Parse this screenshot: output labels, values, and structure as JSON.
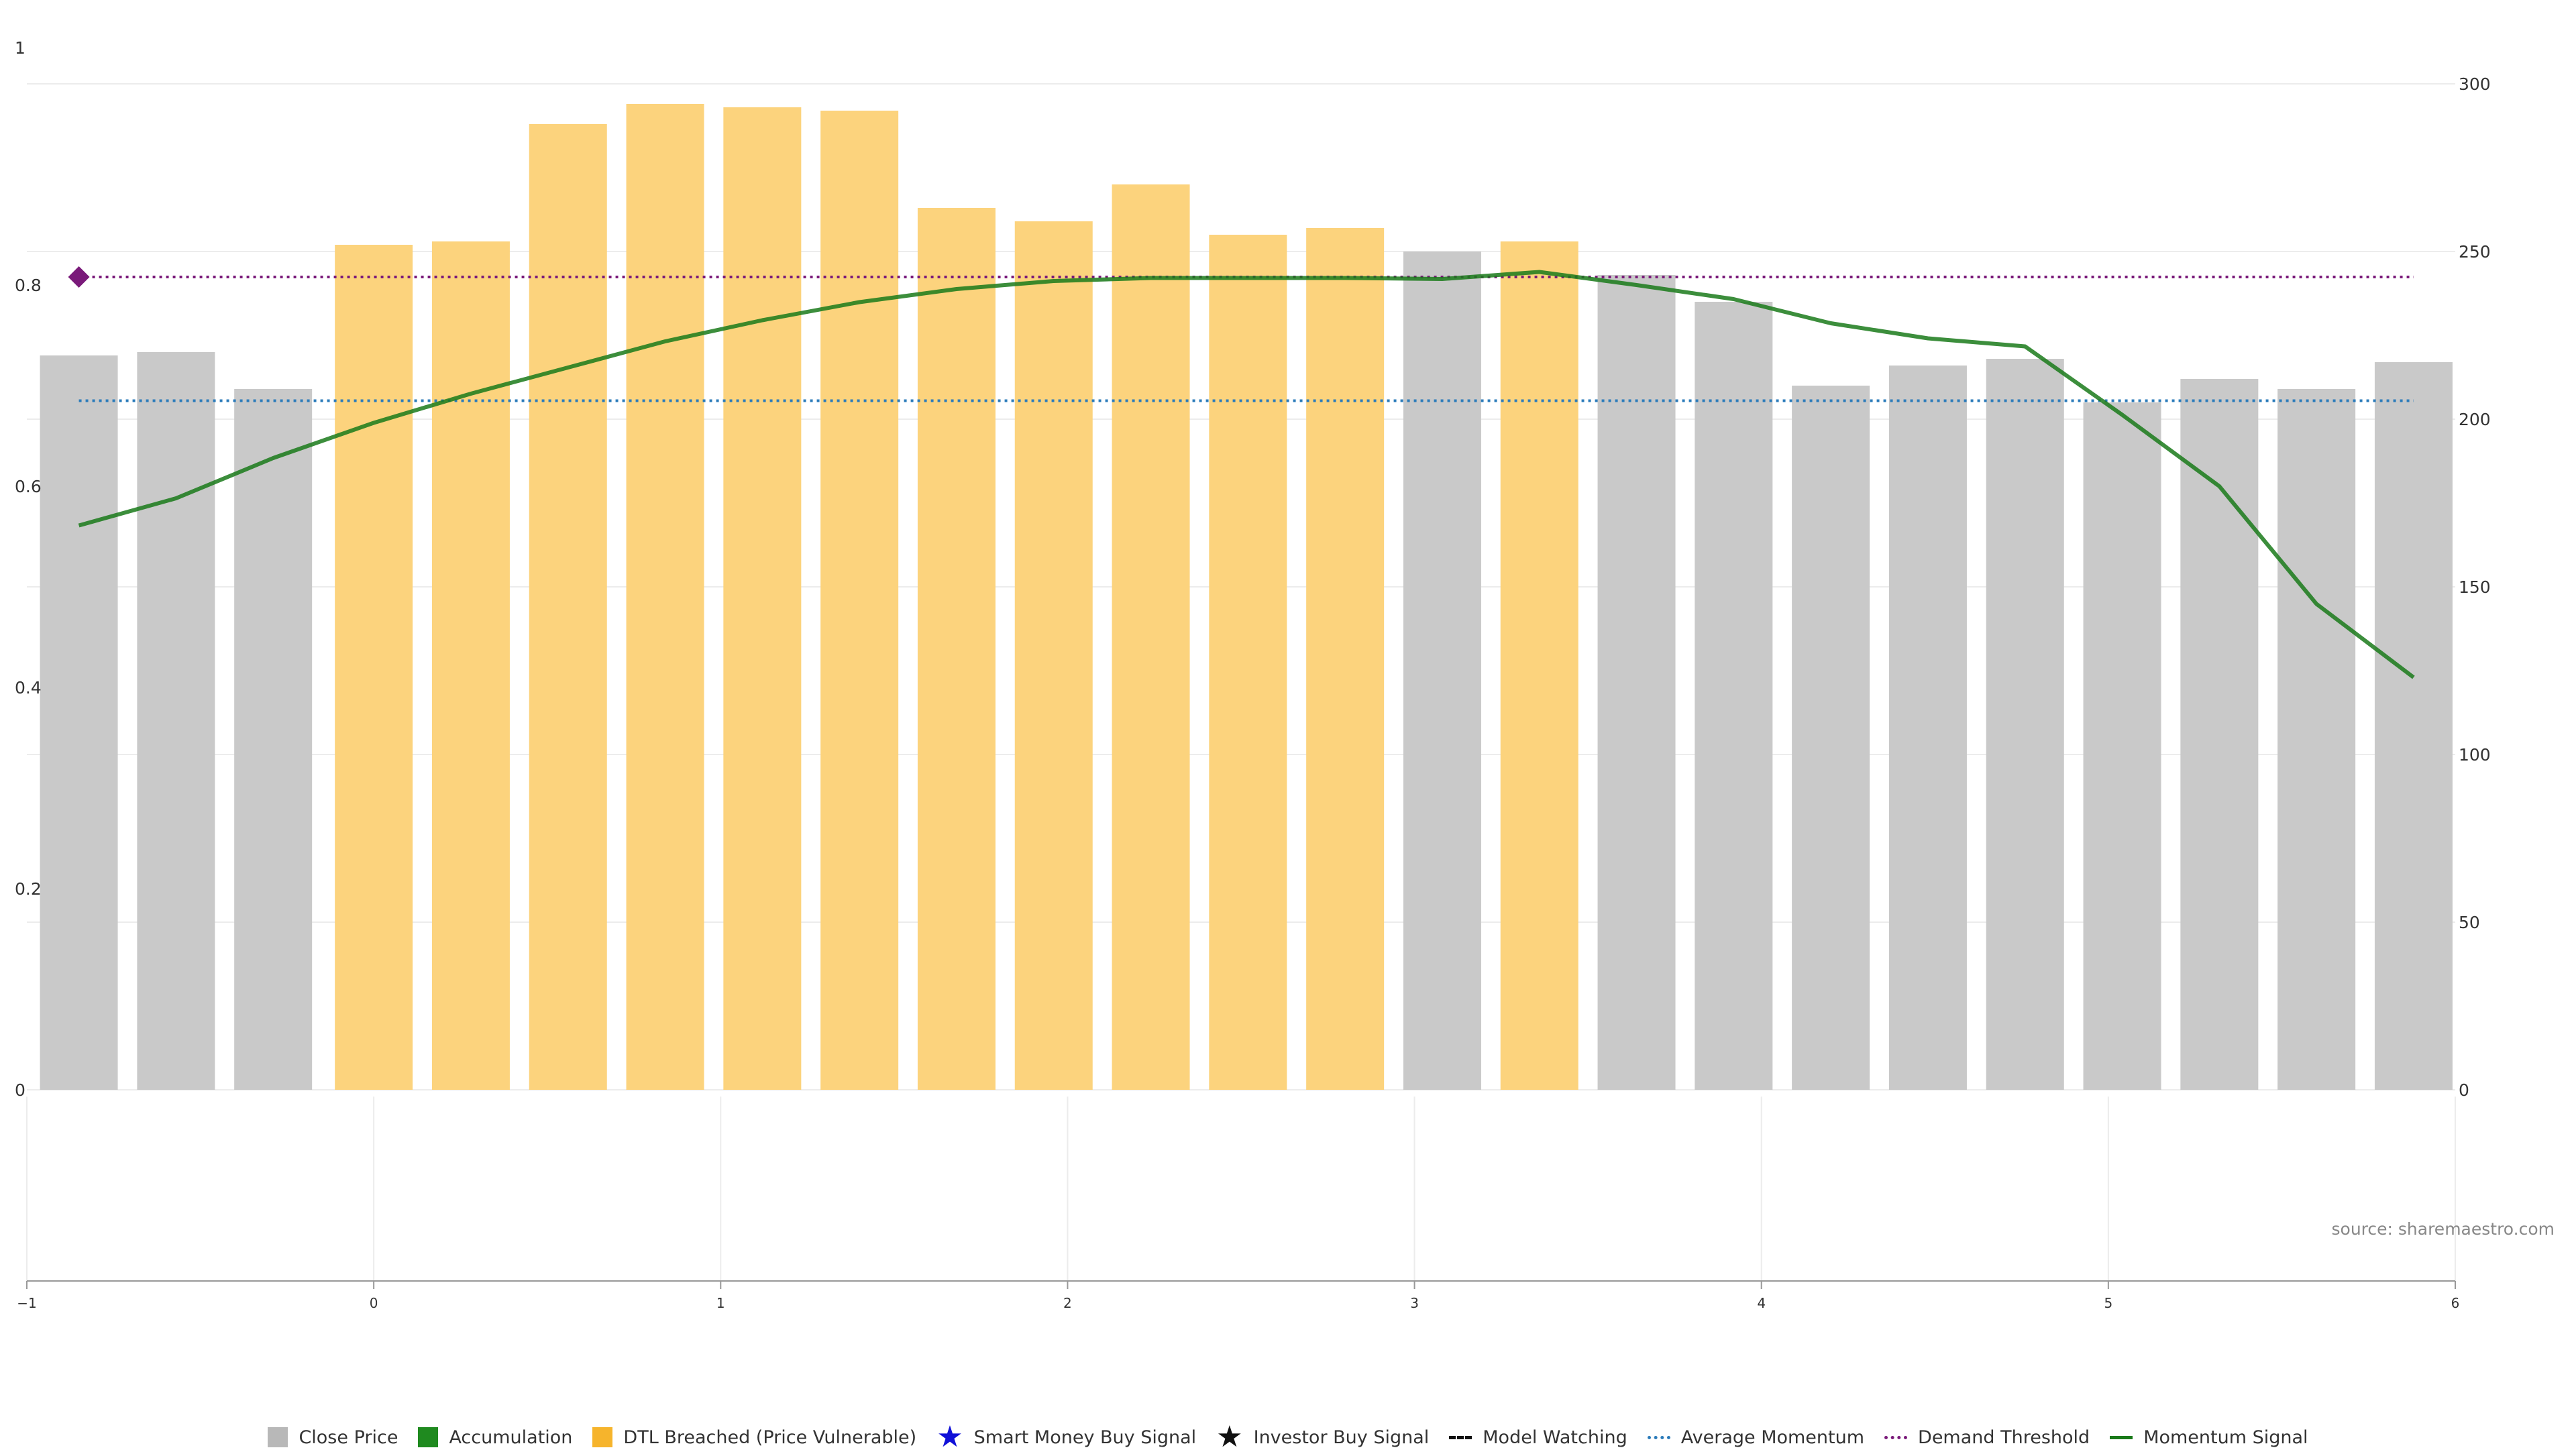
{
  "chart_data": {
    "type": "bar",
    "x": [
      -0.85,
      -0.57,
      -0.29,
      0,
      0.28,
      0.56,
      0.84,
      1.12,
      1.4,
      1.68,
      1.96,
      2.24,
      2.52,
      2.8,
      3.08,
      3.36,
      3.64,
      3.92,
      4.2,
      4.48,
      4.76,
      5.04,
      5.32,
      5.6,
      5.88
    ],
    "series": [
      {
        "name": "Close Price",
        "axis": "right",
        "values": [
          219,
          220,
          209,
          252,
          253,
          288,
          294,
          293,
          292,
          263,
          259,
          270,
          255,
          257,
          250,
          253,
          243,
          235,
          210,
          216,
          218,
          205,
          212,
          209,
          217
        ],
        "colors": [
          "#c8c8c8",
          "#c8c8c8",
          "#c8c8c8",
          "#fcd27a",
          "#fcd27a",
          "#fcd27a",
          "#fcd27a",
          "#fcd27a",
          "#fcd27a",
          "#fcd27a",
          "#fcd27a",
          "#fcd27a",
          "#fcd27a",
          "#fcd27a",
          "#c8c8c8",
          "#fcd27a",
          "#c8c8c8",
          "#c8c8c8",
          "#c8c8c8",
          "#c8c8c8",
          "#c8c8c8",
          "#c8c8c8",
          "#c8c8c8",
          "#c8c8c8",
          "#c8c8c8"
        ]
      },
      {
        "name": "Momentum Signal",
        "axis": "left",
        "type": "line",
        "x": [
          -0.85,
          -0.57,
          -0.29,
          0,
          0.28,
          0.56,
          0.84,
          1.12,
          1.4,
          1.68,
          1.96,
          2.24,
          2.52,
          2.8,
          3.08,
          3.36,
          3.64,
          3.92,
          4.2,
          4.48,
          4.76,
          5.04,
          5.32,
          5.6,
          5.88
        ],
        "values": [
          0.561,
          0.588,
          0.628,
          0.663,
          0.692,
          0.718,
          0.744,
          0.765,
          0.783,
          0.796,
          0.804,
          0.807,
          0.807,
          0.807,
          0.806,
          0.813,
          0.8,
          0.786,
          0.762,
          0.747,
          0.739,
          0.671,
          0.6,
          0.483,
          0.41
        ]
      }
    ],
    "reference_lines": [
      {
        "name": "Average Momentum",
        "axis": "left",
        "value": 0.685,
        "color": "#2b7bba",
        "style": "dotted"
      },
      {
        "name": "Demand Threshold",
        "axis": "left",
        "value": 0.808,
        "color": "#7a1a7a",
        "style": "dotted"
      }
    ],
    "marker": {
      "x": -0.85,
      "y": 0.808,
      "color": "#7a1a7a",
      "shape": "diamond"
    },
    "left_axis": {
      "ylim": [
        0,
        1
      ],
      "ticks": [
        "0",
        "0.2",
        "0.4",
        "0.6",
        "0.8",
        "1"
      ]
    },
    "right_axis": {
      "ylim": [
        0,
        300
      ],
      "ticks": [
        "0",
        "50",
        "100",
        "150",
        "200",
        "250",
        "300"
      ]
    },
    "x_axis": {
      "xlim": [
        -1,
        6
      ],
      "ticks": [
        "−1",
        "0",
        "1",
        "2",
        "3",
        "4",
        "5",
        "6"
      ]
    },
    "grid": true,
    "legend_position": "bottom-center",
    "colors": {
      "close_price": "#c8c8c8",
      "dtl_breached": "#fcd27a",
      "momentum_green": "#1a7a1a",
      "momentum_blend": "#4d8f3a",
      "accumulation": "#1f8a1f"
    }
  },
  "source_note": "source: sharemaestro.com",
  "legend": [
    {
      "label": "Close Price",
      "swatch": "square",
      "color": "#b8b8b8"
    },
    {
      "label": "Accumulation",
      "swatch": "square",
      "color": "#1f8a1f"
    },
    {
      "label": "DTL Breached (Price Vulnerable)",
      "swatch": "square",
      "color": "#f6b42c"
    },
    {
      "label": "Smart Money Buy Signal",
      "swatch": "star",
      "color": "#1010d8"
    },
    {
      "label": "Investor Buy Signal",
      "swatch": "star",
      "color": "#111111"
    },
    {
      "label": "Model Watching",
      "swatch": "dashed",
      "color": "#111111"
    },
    {
      "label": "Average Momentum",
      "swatch": "dotted",
      "color": "#2b7bba"
    },
    {
      "label": "Demand Threshold",
      "swatch": "dotted",
      "color": "#7a1a7a"
    },
    {
      "label": "Momentum Signal",
      "swatch": "solid",
      "color": "#1a7a1a"
    }
  ]
}
